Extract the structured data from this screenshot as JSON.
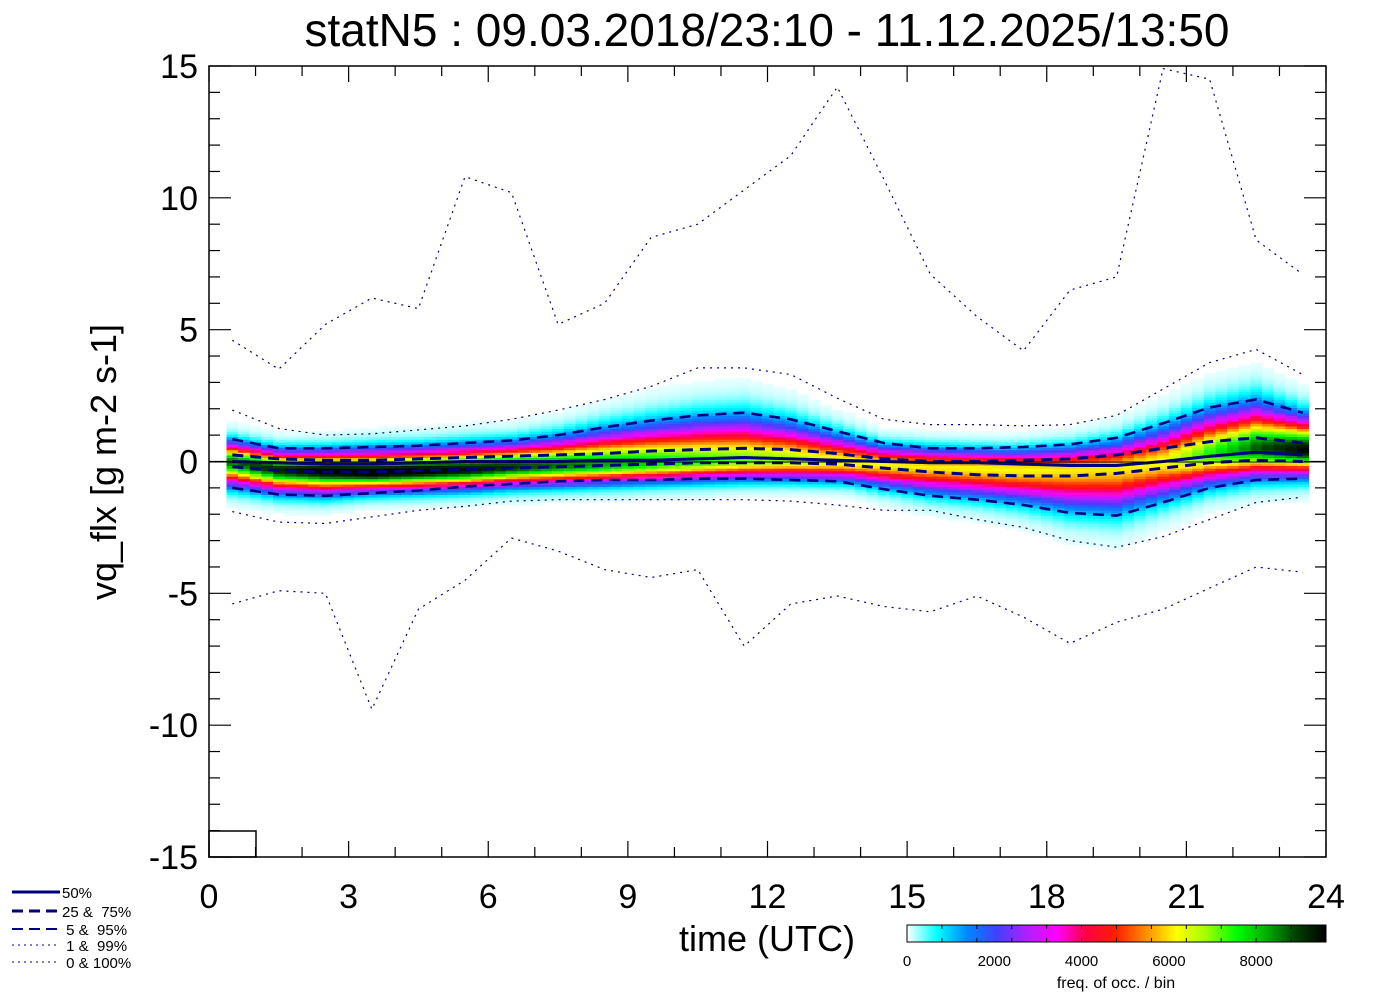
{
  "chart_data": {
    "type": "heatmap",
    "title": "statN5 : 09.03.2018/23:10 - 11.12.2025/13:50",
    "xlabel": "time (UTC)",
    "ylabel": "vq_flx [g m-2 s-1]",
    "xlim": [
      0,
      24
    ],
    "ylim": [
      -15,
      15
    ],
    "xticks": [
      "0",
      "3",
      "6",
      "9",
      "12",
      "15",
      "18",
      "21",
      "24"
    ],
    "yticks": [
      "-15",
      "-10",
      "-5",
      "0",
      "5",
      "10",
      "15"
    ],
    "x": [
      0.5,
      1.5,
      2.5,
      3.5,
      4.5,
      5.5,
      6.5,
      7.5,
      8.5,
      9.5,
      10.5,
      11.5,
      12.5,
      13.5,
      14.5,
      15.5,
      16.5,
      17.5,
      18.5,
      19.5,
      20.5,
      21.5,
      22.5,
      23.5
    ],
    "series": [
      {
        "name": "50%",
        "style": "solid",
        "values": [
          0.0,
          -0.05,
          -0.1,
          -0.1,
          -0.05,
          0.0,
          0.0,
          0.0,
          0.05,
          0.05,
          0.1,
          0.15,
          0.1,
          0.05,
          0.0,
          -0.05,
          -0.05,
          -0.1,
          -0.15,
          -0.15,
          0.0,
          0.2,
          0.35,
          0.25
        ]
      },
      {
        "name": "25%",
        "style": "dashed",
        "values": [
          -0.2,
          -0.35,
          -0.4,
          -0.4,
          -0.35,
          -0.3,
          -0.25,
          -0.2,
          -0.15,
          -0.1,
          -0.05,
          -0.05,
          -0.05,
          -0.1,
          -0.25,
          -0.4,
          -0.5,
          -0.55,
          -0.55,
          -0.45,
          -0.25,
          -0.05,
          0.05,
          0.0
        ]
      },
      {
        "name": "75%",
        "style": "dashed",
        "values": [
          0.25,
          0.1,
          0.05,
          0.05,
          0.1,
          0.15,
          0.2,
          0.25,
          0.3,
          0.4,
          0.45,
          0.5,
          0.45,
          0.3,
          0.1,
          0.0,
          0.0,
          0.05,
          0.1,
          0.25,
          0.5,
          0.75,
          0.9,
          0.7
        ]
      },
      {
        "name": "5%",
        "style": "dashed",
        "values": [
          -1.0,
          -1.25,
          -1.3,
          -1.2,
          -1.1,
          -0.95,
          -0.85,
          -0.75,
          -0.7,
          -0.7,
          -0.65,
          -0.65,
          -0.7,
          -0.75,
          -1.05,
          -1.3,
          -1.45,
          -1.65,
          -1.95,
          -2.05,
          -1.55,
          -1.0,
          -0.7,
          -0.65
        ]
      },
      {
        "name": "95%",
        "style": "dashed",
        "values": [
          0.85,
          0.5,
          0.5,
          0.55,
          0.6,
          0.7,
          0.8,
          1.0,
          1.3,
          1.55,
          1.75,
          1.85,
          1.6,
          1.15,
          0.7,
          0.5,
          0.5,
          0.55,
          0.65,
          0.9,
          1.45,
          2.05,
          2.35,
          1.85
        ]
      },
      {
        "name": "1%",
        "style": "dotted",
        "values": [
          -1.9,
          -2.3,
          -2.35,
          -2.1,
          -1.85,
          -1.7,
          -1.5,
          -1.45,
          -1.45,
          -1.45,
          -1.45,
          -1.45,
          -1.5,
          -1.65,
          -1.85,
          -1.85,
          -2.2,
          -2.5,
          -3.0,
          -3.25,
          -2.85,
          -2.2,
          -1.55,
          -1.35
        ]
      },
      {
        "name": "99%",
        "style": "dotted",
        "values": [
          1.95,
          1.25,
          1.0,
          1.05,
          1.2,
          1.35,
          1.6,
          1.95,
          2.35,
          2.85,
          3.55,
          3.55,
          3.3,
          2.4,
          1.6,
          1.4,
          1.4,
          1.35,
          1.4,
          1.75,
          2.75,
          3.75,
          4.25,
          3.3
        ]
      },
      {
        "name": "0%",
        "style": "dotted",
        "values": [
          -5.4,
          -4.9,
          -5.0,
          -9.4,
          -5.6,
          -4.5,
          -2.9,
          -3.4,
          -4.1,
          -4.4,
          -4.1,
          -7.0,
          -5.4,
          -5.1,
          -5.5,
          -5.7,
          -5.1,
          -5.9,
          -6.9,
          -6.1,
          -5.6,
          -4.8,
          -4.0,
          -4.2
        ]
      },
      {
        "name": "100%",
        "style": "dotted",
        "values": [
          4.6,
          3.5,
          5.2,
          6.2,
          5.8,
          10.8,
          10.2,
          5.2,
          6.0,
          8.5,
          9.0,
          10.3,
          11.6,
          14.2,
          10.7,
          7.1,
          5.5,
          4.2,
          6.5,
          7.0,
          14.9,
          14.5,
          8.4,
          7.1
        ]
      }
    ],
    "density_peak": [
      0.0,
      -0.3,
      -0.35,
      -0.4,
      -0.35,
      -0.3,
      -0.2,
      -0.15,
      -0.1,
      -0.05,
      0.0,
      0.05,
      0.05,
      0.0,
      -0.1,
      -0.2,
      -0.25,
      -0.3,
      -0.3,
      -0.25,
      0.0,
      0.3,
      0.5,
      0.45
    ],
    "density_max": [
      8400,
      9000,
      9500,
      9600,
      9500,
      9200,
      8800,
      8400,
      8000,
      7600,
      7200,
      6900,
      6600,
      6200,
      5900,
      5800,
      5900,
      5900,
      5800,
      5800,
      6000,
      7200,
      8500,
      9300
    ],
    "legend": {
      "placement": "bottom-left",
      "entries": [
        {
          "label": "50%",
          "style": "solid"
        },
        {
          "label": "25 &  75%",
          "style": "dashed"
        },
        {
          "label": " 5 &  95%",
          "style": "dashed"
        },
        {
          "label": " 1 &  99%",
          "style": "dotted"
        },
        {
          "label": " 0 & 100%",
          "style": "dotted"
        }
      ]
    },
    "colorbar": {
      "label": "freq. of occ. / bin",
      "range": [
        0,
        9600
      ],
      "ticks": [
        "0",
        "2000",
        "4000",
        "6000",
        "8000"
      ],
      "tick_values": [
        0,
        2000,
        4000,
        6000,
        8000
      ]
    },
    "colors": {
      "line": "#000080",
      "axis": "#000000",
      "colormap": [
        "#ffffff",
        "#00ffff",
        "#0088ff",
        "#4040ff",
        "#b020ff",
        "#ff00ff",
        "#ff0040",
        "#ff2000",
        "#ff9000",
        "#ffff00",
        "#a0ff00",
        "#00ff00",
        "#00b000",
        "#004000",
        "#000000"
      ]
    }
  }
}
